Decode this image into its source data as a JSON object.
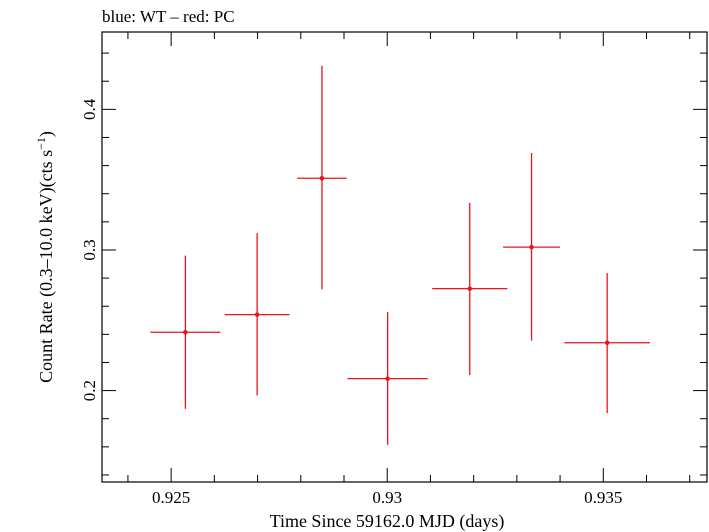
{
  "chart_data": {
    "type": "scatter",
    "title": "blue: WT – red: PC",
    "xlabel": "Time Since 59162.0 MJD (days)",
    "ylabel": "Count Rate (0.3–10.0 keV)(cts s",
    "ylabel_sup": "−1",
    "ylabel_end": ")",
    "xlim": [
      0.9234,
      0.9374
    ],
    "ylim": [
      0.135,
      0.455
    ],
    "xticks_major": [
      0.925,
      0.93,
      0.935
    ],
    "xtick_labels": [
      "0.925",
      "0.93",
      "0.935"
    ],
    "yticks_major": [
      0.2,
      0.3,
      0.4
    ],
    "ytick_labels": [
      "0.2",
      "0.3",
      "0.4"
    ],
    "grid": false,
    "series": [
      {
        "color": "#e8151b",
        "points": [
          {
            "x": 0.92533,
            "xerr": 0.00081,
            "y": 0.2415,
            "yerr_low": 0.0545,
            "yerr_high": 0.0545
          },
          {
            "x": 0.92699,
            "xerr": 0.00075,
            "y": 0.254,
            "yerr_low": 0.0575,
            "yerr_high": 0.058
          },
          {
            "x": 0.92849,
            "xerr": 0.00057,
            "y": 0.351,
            "yerr_low": 0.079,
            "yerr_high": 0.08
          },
          {
            "x": 0.93001,
            "xerr": 0.00093,
            "y": 0.2085,
            "yerr_low": 0.047,
            "yerr_high": 0.0475
          },
          {
            "x": 0.93191,
            "xerr": 0.00087,
            "y": 0.2725,
            "yerr_low": 0.0615,
            "yerr_high": 0.061
          },
          {
            "x": 0.93334,
            "xerr": 0.00066,
            "y": 0.302,
            "yerr_low": 0.0665,
            "yerr_high": 0.067
          },
          {
            "x": 0.93509,
            "xerr": 0.00099,
            "y": 0.234,
            "yerr_low": 0.05,
            "yerr_high": 0.0495
          }
        ]
      }
    ]
  }
}
